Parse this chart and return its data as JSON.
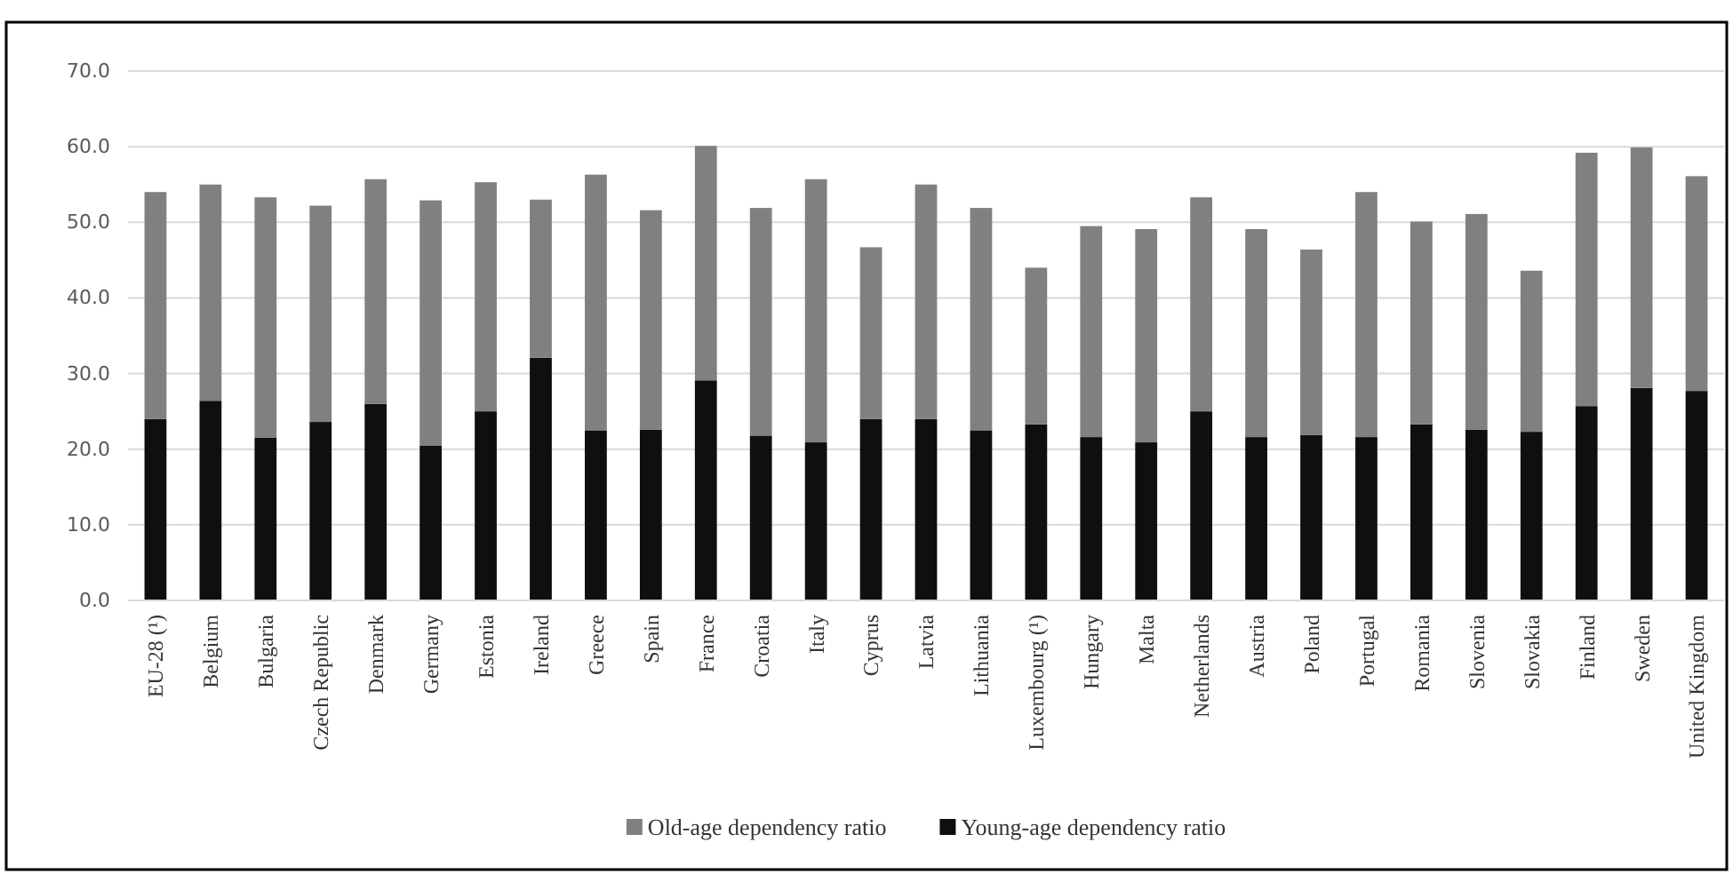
{
  "chart_data": {
    "type": "bar",
    "stacked": true,
    "categories": [
      "EU-28 (¹)",
      "Belgium",
      "Bulgaria",
      "Czech Republic",
      "Denmark",
      "Germany",
      "Estonia",
      "Ireland",
      "Greece",
      "Spain",
      "France",
      "Croatia",
      "Italy",
      "Cyprus",
      "Latvia",
      "Lithuania",
      "Luxembourg (¹)",
      "Hungary",
      "Malta",
      "Netherlands",
      "Austria",
      "Poland",
      "Portugal",
      "Romania",
      "Slovenia",
      "Slovakia",
      "Finland",
      "Sweden",
      "United Kingdom"
    ],
    "series": [
      {
        "name": "Young-age dependency ratio",
        "color": "#0f0f0f",
        "values": [
          24.0,
          26.4,
          21.5,
          23.6,
          26.0,
          20.5,
          25.0,
          32.1,
          22.5,
          22.6,
          29.1,
          21.8,
          20.9,
          24.0,
          24.0,
          22.5,
          23.3,
          21.6,
          20.9,
          25.0,
          21.6,
          21.9,
          21.6,
          23.3,
          22.6,
          22.3,
          25.7,
          28.1,
          27.7
        ]
      },
      {
        "name": "Old-age dependency ratio",
        "color": "#808080",
        "values": [
          30.0,
          28.6,
          31.8,
          28.6,
          29.7,
          32.4,
          30.3,
          20.9,
          33.8,
          29.0,
          31.0,
          30.1,
          34.8,
          22.7,
          31.0,
          29.4,
          20.7,
          27.9,
          28.2,
          28.3,
          27.5,
          24.5,
          32.4,
          26.8,
          28.5,
          21.3,
          33.5,
          31.8,
          28.4
        ]
      }
    ],
    "ylim": [
      0,
      70
    ],
    "yticks": [
      {
        "value": 0,
        "label": "0.0"
      },
      {
        "value": 10,
        "label": "10.0"
      },
      {
        "value": 20,
        "label": "20.0"
      },
      {
        "value": 30,
        "label": "30.0"
      },
      {
        "value": 40,
        "label": "40.0"
      },
      {
        "value": 50,
        "label": "50.0"
      },
      {
        "value": 60,
        "label": "60.0"
      },
      {
        "value": 70,
        "label": "70.0"
      }
    ],
    "grid": "y",
    "legend": "bottom"
  }
}
